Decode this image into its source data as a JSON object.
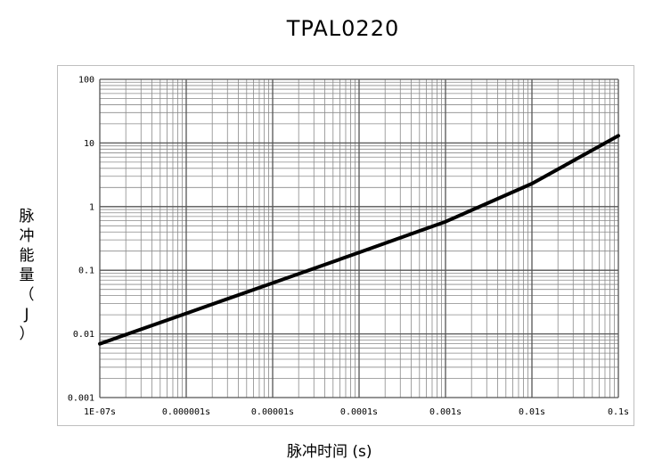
{
  "chart_data": {
    "type": "line",
    "title": "TPAL0220",
    "xlabel": "脉冲时间 (s)",
    "ylabel_chars": [
      "脉",
      "冲",
      "能",
      "量",
      "（",
      "J",
      "）"
    ],
    "x_scale": "log",
    "y_scale": "log",
    "xlim": [
      1e-07,
      0.1
    ],
    "ylim": [
      0.001,
      100
    ],
    "grid": true,
    "x_ticks": [
      {
        "value": 1e-07,
        "label": "1E-07s"
      },
      {
        "value": 1e-06,
        "label": "0.000001s"
      },
      {
        "value": 1e-05,
        "label": "0.00001s"
      },
      {
        "value": 0.0001,
        "label": "0.0001s"
      },
      {
        "value": 0.001,
        "label": "0.001s"
      },
      {
        "value": 0.01,
        "label": "0.01s"
      },
      {
        "value": 0.1,
        "label": "0.1s"
      }
    ],
    "y_ticks": [
      {
        "value": 0.001,
        "label": "0.001"
      },
      {
        "value": 0.01,
        "label": "0.01"
      },
      {
        "value": 0.1,
        "label": "0.1"
      },
      {
        "value": 1,
        "label": "1"
      },
      {
        "value": 10,
        "label": "10"
      },
      {
        "value": 100,
        "label": "100"
      }
    ],
    "series": [
      {
        "color": "#000000",
        "x": [
          1e-07,
          1e-06,
          1e-05,
          0.0001,
          0.001,
          0.01,
          0.1
        ],
        "y": [
          0.007,
          0.021,
          0.063,
          0.19,
          0.58,
          2.3,
          13
        ]
      }
    ]
  }
}
